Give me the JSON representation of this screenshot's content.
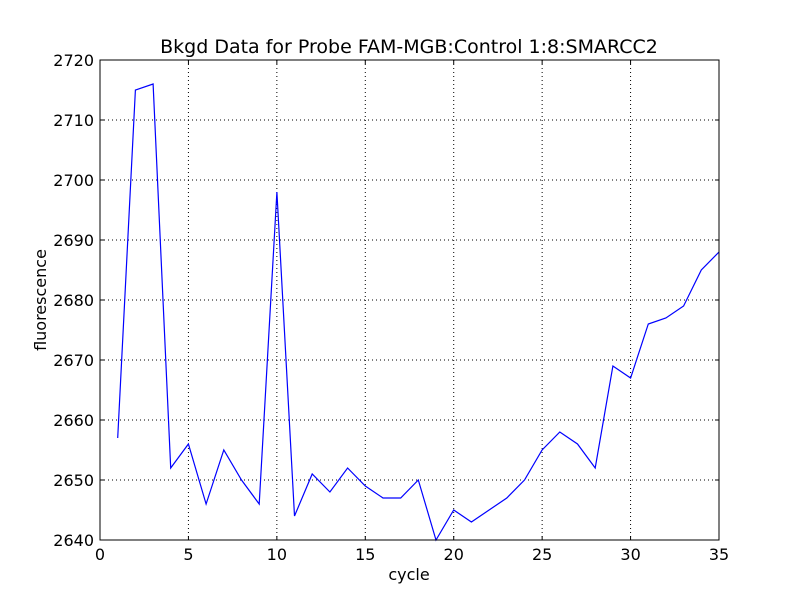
{
  "chart_data": {
    "type": "line",
    "title": "Bkgd Data for Probe FAM-MGB:Control 1:8:SMARCC2",
    "xlabel": "cycle",
    "ylabel": "fluorescence",
    "xlim": [
      0,
      35
    ],
    "ylim": [
      2640,
      2720
    ],
    "xticks": [
      0,
      5,
      10,
      15,
      20,
      25,
      30,
      35
    ],
    "yticks": [
      2640,
      2650,
      2660,
      2670,
      2680,
      2690,
      2700,
      2710,
      2720
    ],
    "grid": true,
    "line_color": "#0000ff",
    "series": [
      {
        "x": [
          1,
          2,
          3,
          4,
          5,
          6,
          7,
          8,
          9,
          10,
          11,
          12,
          13,
          14,
          15,
          16,
          17,
          18,
          19,
          20,
          21,
          22,
          23,
          24,
          25,
          26,
          27,
          28,
          29,
          30,
          31,
          32,
          33,
          34,
          35
        ],
        "values": [
          2657,
          2715,
          2716,
          2652,
          2656,
          2646,
          2655,
          2650,
          2646,
          2698,
          2644,
          2651,
          2648,
          2652,
          2649,
          2647,
          2647,
          2650,
          2640,
          2645,
          2643,
          2645,
          2647,
          2650,
          2655,
          2658,
          2656,
          2652,
          2669,
          2667,
          2676,
          2677,
          2679,
          2685,
          2688
        ]
      }
    ]
  }
}
